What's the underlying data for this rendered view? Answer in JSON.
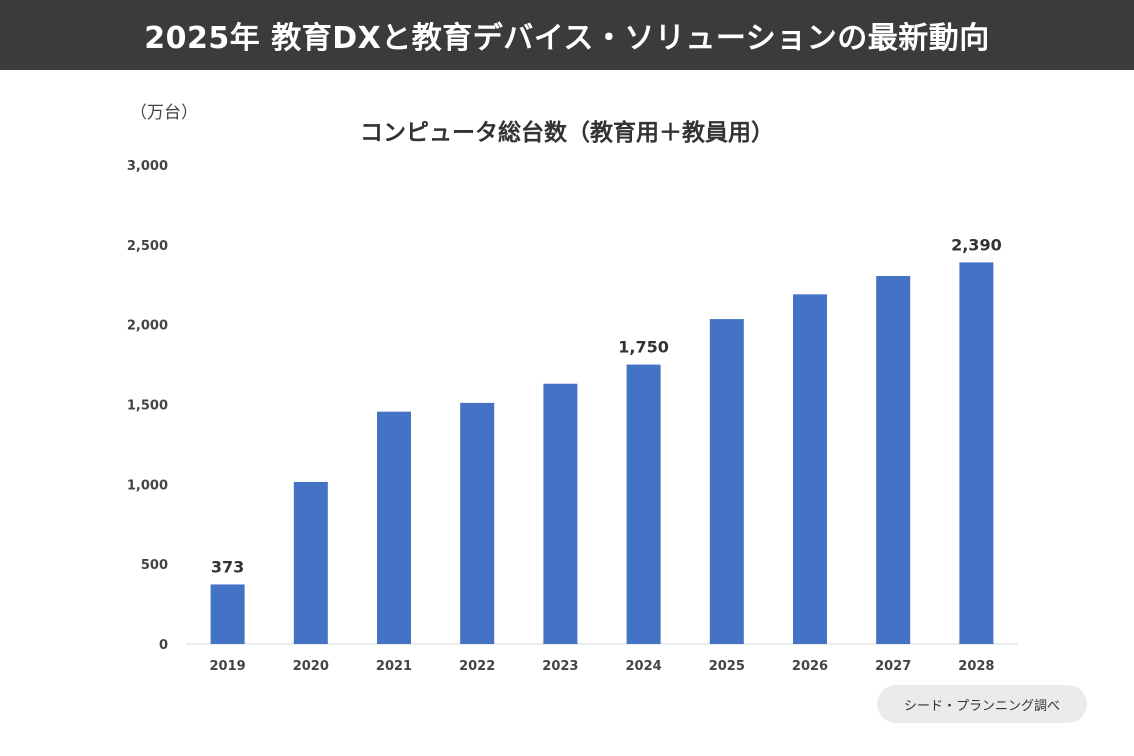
{
  "header": {
    "title": "2025年 教育DXと教育デバイス・ソリューションの最新動向"
  },
  "source_label": "シード・プランニング調べ",
  "chart_data": {
    "type": "bar",
    "title": "コンピュータ総台数（教育用＋教員用）",
    "unit_label": "（万台）",
    "xlabel": "",
    "ylabel": "（万台）",
    "ylim": [
      0,
      3000
    ],
    "yticks": [
      0,
      500,
      1000,
      1500,
      2000,
      2500,
      3000
    ],
    "ytick_labels": [
      "0",
      "500",
      "1,000",
      "1,500",
      "2,000",
      "2,500",
      "3,000"
    ],
    "categories": [
      "2019",
      "2020",
      "2021",
      "2022",
      "2023",
      "2024",
      "2025",
      "2026",
      "2027",
      "2028"
    ],
    "values": [
      373,
      1015,
      1455,
      1510,
      1630,
      1750,
      2035,
      2190,
      2305,
      2390
    ],
    "data_labels": [
      {
        "index": 0,
        "text": "373"
      },
      {
        "index": 5,
        "text": "1,750"
      },
      {
        "index": 9,
        "text": "2,390"
      }
    ],
    "bar_color": "#4472c4",
    "grid": false
  }
}
